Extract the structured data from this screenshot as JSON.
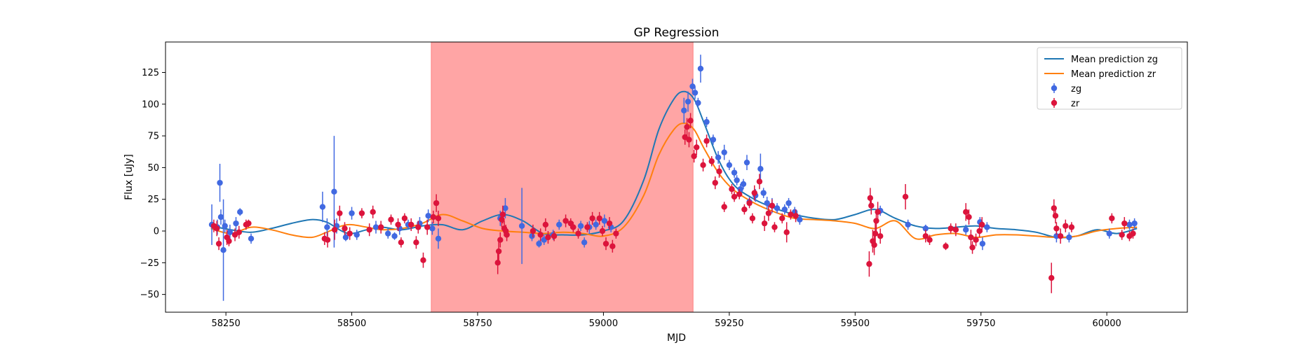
{
  "chart_data": {
    "type": "scatter",
    "title": "GP Regression",
    "xlabel": "MJD",
    "ylabel": "Flux [uJy]",
    "xlim": [
      58130,
      60160
    ],
    "ylim": [
      -64,
      149
    ],
    "xticks": [
      58250,
      58500,
      58750,
      59000,
      59250,
      59500,
      59750,
      60000
    ],
    "yticks": [
      -50,
      -25,
      0,
      25,
      50,
      75,
      100,
      125
    ],
    "grid": false,
    "legend_position": "top-right",
    "highlight_region": {
      "x_start": 58658,
      "x_end": 59178,
      "color": "#ffa5a5"
    },
    "colors": {
      "zg_points": "#4169e1",
      "zr_points": "#dc143c",
      "zg_line": "#1f77b4",
      "zr_line": "#ff7f0e"
    },
    "lines": [
      {
        "name": "Mean prediction zg",
        "x": [
          58220,
          58260,
          58300,
          58340,
          58380,
          58420,
          58450,
          58480,
          58500,
          58530,
          58560,
          58600,
          58640,
          58680,
          58720,
          58760,
          58800,
          58840,
          58880,
          58920,
          58960,
          59000,
          59040,
          59080,
          59110,
          59140,
          59160,
          59180,
          59200,
          59230,
          59260,
          59300,
          59340,
          59380,
          59420,
          59460,
          59500,
          59540,
          59580,
          59620,
          59660,
          59700,
          59740,
          59780,
          59820,
          59860,
          59900,
          59940,
          59980,
          60020,
          60060
        ],
        "y": [
          4,
          1,
          -1,
          2,
          6,
          9,
          7,
          0,
          -2,
          1,
          3,
          1,
          4,
          5,
          1,
          8,
          13,
          8,
          -2,
          -3,
          -3,
          0,
          8,
          40,
          80,
          104,
          110,
          104,
          85,
          55,
          36,
          25,
          18,
          13,
          10,
          9,
          13,
          17,
          10,
          4,
          2,
          3,
          4,
          2,
          1,
          -1,
          -5,
          -4,
          1,
          -2,
          2
        ]
      },
      {
        "name": "Mean prediction zr",
        "x": [
          58220,
          58260,
          58300,
          58340,
          58380,
          58420,
          58450,
          58480,
          58500,
          58530,
          58560,
          58600,
          58640,
          58680,
          58720,
          58760,
          58800,
          58840,
          58880,
          58920,
          58960,
          59000,
          59040,
          59080,
          59110,
          59140,
          59160,
          59180,
          59200,
          59230,
          59260,
          59300,
          59340,
          59380,
          59420,
          59460,
          59500,
          59540,
          59580,
          59620,
          59660,
          59700,
          59740,
          59780,
          59820,
          59860,
          59900,
          59940,
          59980,
          60020,
          60060
        ],
        "y": [
          2,
          -2,
          3,
          1,
          -3,
          -5,
          -1,
          4,
          5,
          3,
          1,
          2,
          6,
          13,
          8,
          2,
          0,
          -1,
          -2,
          -1,
          -2,
          -4,
          3,
          28,
          60,
          80,
          85,
          80,
          65,
          45,
          32,
          22,
          15,
          10,
          9,
          8,
          6,
          2,
          8,
          -6,
          -3,
          -2,
          -5,
          -3,
          -3,
          -4,
          -5,
          -4,
          0,
          2,
          3
        ]
      }
    ],
    "series": [
      {
        "name": "zg",
        "points": [
          [
            58222,
            5,
            16
          ],
          [
            58233,
            3,
            6
          ],
          [
            58238,
            38,
            15
          ],
          [
            58240,
            11,
            6
          ],
          [
            58245,
            -15,
            40
          ],
          [
            58248,
            4,
            5
          ],
          [
            58258,
            -1,
            6
          ],
          [
            58270,
            6,
            5
          ],
          [
            58278,
            15,
            3
          ],
          [
            58300,
            -6,
            4
          ],
          [
            58442,
            19,
            12
          ],
          [
            58451,
            3,
            7
          ],
          [
            58465,
            31,
            44
          ],
          [
            58470,
            4,
            6
          ],
          [
            58488,
            -5,
            3
          ],
          [
            58500,
            14,
            5
          ],
          [
            58510,
            -3,
            4
          ],
          [
            58548,
            3,
            5
          ],
          [
            58572,
            -2,
            4
          ],
          [
            58585,
            -4,
            3
          ],
          [
            58595,
            2,
            5
          ],
          [
            58612,
            5,
            4
          ],
          [
            58635,
            6,
            5
          ],
          [
            58652,
            12,
            5
          ],
          [
            58660,
            2,
            5
          ],
          [
            58672,
            -6,
            8
          ],
          [
            58795,
            10,
            6
          ],
          [
            58805,
            18,
            8
          ],
          [
            58838,
            4,
            30
          ],
          [
            58858,
            -4,
            4
          ],
          [
            58872,
            -10,
            3
          ],
          [
            58882,
            -7,
            4
          ],
          [
            58900,
            -3,
            4
          ],
          [
            58912,
            5,
            4
          ],
          [
            58955,
            4,
            4
          ],
          [
            58962,
            -9,
            4
          ],
          [
            58972,
            3,
            5
          ],
          [
            58985,
            5,
            4
          ],
          [
            59002,
            8,
            5
          ],
          [
            59015,
            3,
            4
          ],
          [
            59160,
            95,
            10
          ],
          [
            59168,
            102,
            8
          ],
          [
            59177,
            114,
            6
          ],
          [
            59182,
            109,
            5
          ],
          [
            59188,
            101,
            4
          ],
          [
            59193,
            128,
            11
          ],
          [
            59205,
            86,
            4
          ],
          [
            59218,
            72,
            4
          ],
          [
            59228,
            58,
            5
          ],
          [
            59240,
            62,
            6
          ],
          [
            59250,
            52,
            4
          ],
          [
            59260,
            46,
            4
          ],
          [
            59265,
            40,
            4
          ],
          [
            59272,
            33,
            4
          ],
          [
            59278,
            37,
            4
          ],
          [
            59285,
            54,
            6
          ],
          [
            59290,
            23,
            4
          ],
          [
            59302,
            28,
            5
          ],
          [
            59312,
            49,
            12
          ],
          [
            59318,
            30,
            4
          ],
          [
            59325,
            22,
            5
          ],
          [
            59335,
            20,
            6
          ],
          [
            59345,
            18,
            4
          ],
          [
            59360,
            17,
            4
          ],
          [
            59368,
            22,
            4
          ],
          [
            59380,
            15,
            4
          ],
          [
            59390,
            9,
            4
          ],
          [
            59550,
            16,
            4
          ],
          [
            59605,
            5,
            4
          ],
          [
            59640,
            2,
            3
          ],
          [
            59720,
            1,
            4
          ],
          [
            59748,
            7,
            4
          ],
          [
            59753,
            -10,
            5
          ],
          [
            59762,
            3,
            4
          ],
          [
            59900,
            -4,
            5
          ],
          [
            59925,
            -5,
            4
          ],
          [
            60005,
            -2,
            4
          ],
          [
            60045,
            5,
            4
          ],
          [
            60055,
            6,
            4
          ]
        ]
      },
      {
        "name": "zr",
        "points": [
          [
            58226,
            4,
            5
          ],
          [
            58232,
            2,
            6
          ],
          [
            58236,
            -10,
            5
          ],
          [
            58252,
            -5,
            6
          ],
          [
            58256,
            -8,
            4
          ],
          [
            58268,
            -3,
            5
          ],
          [
            58276,
            -1,
            5
          ],
          [
            58290,
            5,
            4
          ],
          [
            58295,
            6,
            3
          ],
          [
            58446,
            -6,
            5
          ],
          [
            58452,
            -7,
            6
          ],
          [
            58466,
            1,
            8
          ],
          [
            58476,
            14,
            6
          ],
          [
            58486,
            2,
            5
          ],
          [
            58496,
            -2,
            5
          ],
          [
            58520,
            14,
            4
          ],
          [
            58535,
            1,
            5
          ],
          [
            58542,
            15,
            5
          ],
          [
            58558,
            3,
            5
          ],
          [
            58578,
            9,
            4
          ],
          [
            58592,
            5,
            5
          ],
          [
            58598,
            -9,
            4
          ],
          [
            58605,
            10,
            4
          ],
          [
            58618,
            5,
            5
          ],
          [
            58628,
            -9,
            5
          ],
          [
            58632,
            3,
            5
          ],
          [
            58642,
            -23,
            6
          ],
          [
            58650,
            3,
            6
          ],
          [
            58662,
            11,
            5
          ],
          [
            58668,
            22,
            7
          ],
          [
            58672,
            10,
            6
          ],
          [
            58790,
            -25,
            9
          ],
          [
            58792,
            -16,
            8
          ],
          [
            58795,
            -7,
            6
          ],
          [
            58798,
            9,
            6
          ],
          [
            58800,
            13,
            7
          ],
          [
            58803,
            2,
            6
          ],
          [
            58806,
            0,
            5
          ],
          [
            58808,
            -3,
            5
          ],
          [
            58860,
            0,
            5
          ],
          [
            58875,
            -3,
            5
          ],
          [
            58885,
            5,
            5
          ],
          [
            58890,
            -5,
            5
          ],
          [
            58902,
            -4,
            4
          ],
          [
            58925,
            8,
            5
          ],
          [
            58935,
            6,
            4
          ],
          [
            58940,
            3,
            4
          ],
          [
            58950,
            -2,
            4
          ],
          [
            58968,
            3,
            4
          ],
          [
            58978,
            10,
            5
          ],
          [
            58992,
            10,
            5
          ],
          [
            58998,
            0,
            4
          ],
          [
            59005,
            -10,
            5
          ],
          [
            59012,
            6,
            5
          ],
          [
            59018,
            -12,
            5
          ],
          [
            59025,
            -2,
            4
          ],
          [
            59162,
            74,
            6
          ],
          [
            59166,
            82,
            7
          ],
          [
            59170,
            72,
            6
          ],
          [
            59173,
            87,
            6
          ],
          [
            59180,
            59,
            5
          ],
          [
            59185,
            66,
            6
          ],
          [
            59198,
            52,
            5
          ],
          [
            59205,
            71,
            5
          ],
          [
            59215,
            55,
            4
          ],
          [
            59222,
            38,
            5
          ],
          [
            59230,
            47,
            5
          ],
          [
            59240,
            19,
            4
          ],
          [
            59255,
            33,
            4
          ],
          [
            59260,
            27,
            4
          ],
          [
            59270,
            29,
            4
          ],
          [
            59280,
            17,
            4
          ],
          [
            59290,
            22,
            4
          ],
          [
            59296,
            10,
            4
          ],
          [
            59300,
            30,
            6
          ],
          [
            59310,
            39,
            6
          ],
          [
            59320,
            6,
            6
          ],
          [
            59328,
            14,
            6
          ],
          [
            59335,
            20,
            5
          ],
          [
            59340,
            3,
            4
          ],
          [
            59355,
            10,
            4
          ],
          [
            59364,
            -1,
            8
          ],
          [
            59372,
            13,
            4
          ],
          [
            59382,
            12,
            5
          ],
          [
            59528,
            -26,
            10
          ],
          [
            59530,
            26,
            8
          ],
          [
            59532,
            20,
            7
          ],
          [
            59535,
            -8,
            9
          ],
          [
            59538,
            -11,
            8
          ],
          [
            59540,
            -2,
            10
          ],
          [
            59542,
            8,
            8
          ],
          [
            59545,
            15,
            8
          ],
          [
            59550,
            -4,
            6
          ],
          [
            59600,
            27,
            10
          ],
          [
            59640,
            -4,
            5
          ],
          [
            59648,
            -7,
            4
          ],
          [
            59680,
            -12,
            3
          ],
          [
            59690,
            2,
            4
          ],
          [
            59700,
            1,
            5
          ],
          [
            59720,
            15,
            7
          ],
          [
            59726,
            11,
            6
          ],
          [
            59730,
            -5,
            6
          ],
          [
            59733,
            -13,
            5
          ],
          [
            59740,
            -7,
            5
          ],
          [
            59747,
            0,
            5
          ],
          [
            59752,
            5,
            6
          ],
          [
            59890,
            -37,
            12
          ],
          [
            59895,
            18,
            7
          ],
          [
            59898,
            12,
            6
          ],
          [
            59900,
            2,
            5
          ],
          [
            59908,
            -4,
            6
          ],
          [
            59918,
            4,
            5
          ],
          [
            59930,
            3,
            4
          ],
          [
            60010,
            10,
            4
          ],
          [
            60030,
            -3,
            4
          ],
          [
            60035,
            6,
            5
          ],
          [
            60045,
            -4,
            4
          ],
          [
            60052,
            -2,
            4
          ]
        ]
      }
    ],
    "legend": [
      "Mean prediction zg",
      "Mean prediction zr",
      "zg",
      "zr"
    ]
  }
}
